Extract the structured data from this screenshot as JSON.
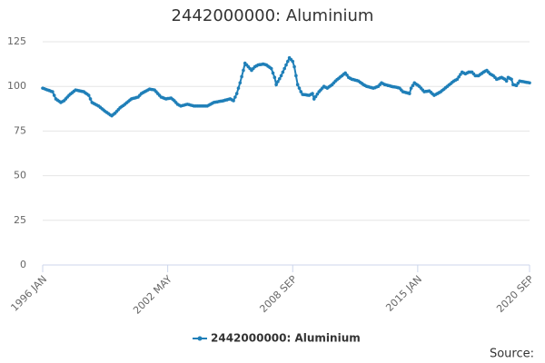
{
  "chart_data": {
    "type": "line",
    "title": "2442000000: Aluminium",
    "source": "Source:",
    "categories": [
      "1996 JAN",
      null,
      null,
      null,
      null,
      null,
      null,
      null,
      null,
      null,
      null,
      null,
      null,
      null,
      null,
      null,
      null,
      null,
      null,
      null,
      null,
      null,
      null,
      null,
      null,
      null,
      null,
      null,
      null,
      null,
      null,
      null,
      null,
      null,
      null,
      null,
      null,
      null,
      null,
      null,
      null,
      null,
      null,
      null,
      null,
      null,
      null,
      null,
      null,
      null,
      null,
      null,
      null,
      null,
      null,
      null,
      null,
      null,
      null,
      null,
      null,
      null,
      null,
      null,
      null,
      null,
      null,
      null,
      null,
      null,
      null,
      null,
      null,
      null,
      null,
      null,
      "2002 MAY",
      null,
      null,
      null,
      null,
      null,
      null,
      null,
      null,
      null,
      null,
      null,
      null,
      null,
      null,
      null,
      null,
      null,
      null,
      null,
      null,
      null,
      null,
      null,
      null,
      null,
      null,
      null,
      null,
      null,
      null,
      null,
      null,
      null,
      null,
      null,
      null,
      null,
      null,
      null,
      null,
      null,
      null,
      null,
      null,
      null,
      null,
      null,
      null,
      null,
      null,
      null,
      null,
      null,
      null,
      null,
      null,
      null,
      null,
      null,
      null,
      null,
      null,
      null,
      null,
      null,
      null,
      null,
      null,
      null,
      null,
      null,
      null,
      null,
      null,
      null,
      "2008 SEP",
      null,
      null,
      null,
      null,
      null,
      null,
      null,
      null,
      null,
      null,
      null,
      null,
      null,
      null,
      null,
      null,
      null,
      null,
      null,
      null,
      null,
      null,
      null,
      null,
      null,
      null,
      null,
      null,
      null,
      null,
      null,
      null,
      null,
      null,
      null,
      null,
      null,
      null,
      null,
      null,
      null,
      null,
      null,
      null,
      null,
      null,
      null,
      null,
      null,
      null,
      null,
      null,
      null,
      null,
      null,
      null,
      null,
      null,
      null,
      null,
      null,
      null,
      null,
      null,
      null,
      null,
      null,
      null,
      null,
      null,
      null,
      null,
      null,
      null,
      null,
      "2015 JAN",
      null,
      null,
      null,
      null,
      null,
      null,
      null,
      null,
      null,
      null,
      null,
      null,
      null,
      null,
      null,
      null,
      null,
      null,
      null,
      null,
      null,
      null,
      null,
      null,
      null,
      null,
      null,
      null,
      null,
      null,
      null,
      null,
      null,
      null,
      null,
      null,
      null,
      null,
      null,
      null,
      null,
      null,
      null,
      null,
      null,
      null,
      null,
      null,
      null,
      null,
      null,
      null,
      null,
      null,
      null,
      null,
      null,
      null,
      null,
      null,
      null,
      null,
      null,
      null,
      null,
      null,
      null,
      "2020 SEP"
    ],
    "series": [
      {
        "name": "2442000000: Aluminium",
        "color": "#1f7fb8",
        "values": [
          99,
          98.7,
          98.3,
          98,
          97.7,
          97.3,
          97,
          95,
          93,
          92.3,
          91.7,
          91,
          91.5,
          92,
          93,
          94,
          95,
          95.8,
          96.5,
          97.3,
          98,
          97.8,
          97.6,
          97.4,
          97.2,
          97,
          96.3,
          95.7,
          95,
          93,
          91,
          90.5,
          90,
          89.5,
          89,
          88.3,
          87.5,
          86.8,
          86,
          85.4,
          84.8,
          84.1,
          83.5,
          84.3,
          85,
          86,
          87,
          88,
          88.7,
          89.3,
          90,
          90.8,
          91.5,
          92.3,
          93,
          93.3,
          93.5,
          93.8,
          94,
          95,
          96,
          96.5,
          97,
          97.5,
          98,
          98.5,
          98.3,
          98.2,
          98,
          97,
          96,
          95,
          94,
          93.7,
          93.3,
          93,
          93.2,
          93.3,
          93.5,
          92.8,
          92,
          91,
          90,
          89.5,
          89,
          89.3,
          89.5,
          89.8,
          90,
          89.8,
          89.5,
          89.3,
          89,
          89,
          89,
          89,
          89,
          89,
          89,
          89,
          89,
          89.5,
          90,
          90.5,
          91,
          91.2,
          91.3,
          91.5,
          91.7,
          91.8,
          92,
          92.3,
          92.5,
          92.8,
          93,
          92.5,
          92,
          94,
          96,
          99,
          102,
          105.5,
          109,
          113,
          112,
          111,
          110,
          109,
          110,
          111,
          111.5,
          112,
          112.2,
          112.3,
          112.5,
          112.3,
          112,
          111.3,
          110.7,
          110,
          107.5,
          105,
          101,
          102.7,
          104.3,
          106,
          108,
          110,
          112,
          114,
          116,
          115,
          114,
          111,
          106,
          101,
          99,
          97,
          95.5,
          95.4,
          95.3,
          95.1,
          95,
          95.5,
          96,
          93,
          94.3,
          95.7,
          97,
          98,
          99,
          100,
          99.5,
          99,
          99.7,
          100.3,
          101,
          102,
          103,
          103.8,
          104.5,
          105.3,
          106,
          106.8,
          107.5,
          106.3,
          105,
          104.5,
          104,
          103.8,
          103.5,
          103.3,
          103,
          102.3,
          101.7,
          101,
          100.5,
          100,
          99.8,
          99.5,
          99.3,
          99,
          99.3,
          99.7,
          100,
          101,
          102,
          101.5,
          101,
          100.8,
          100.5,
          100.3,
          100,
          99.8,
          99.7,
          99.5,
          99.3,
          99,
          98,
          97,
          96.8,
          96.5,
          96.3,
          96,
          99,
          100.5,
          102,
          101.3,
          100.7,
          100,
          99,
          98,
          97,
          97.2,
          97.3,
          97.5,
          96.7,
          95.8,
          95,
          95.5,
          96,
          96.5,
          97,
          97.8,
          98.5,
          99.3,
          100,
          100.8,
          101.5,
          102.3,
          103,
          103.5,
          104,
          105.3,
          106.7,
          108,
          107.5,
          107,
          107.5,
          108,
          108,
          108,
          107,
          106,
          106,
          106,
          106.7,
          107.3,
          108,
          108.5,
          109,
          108,
          107,
          106.5,
          106,
          105,
          104,
          104.3,
          104.7,
          105,
          104.5,
          104,
          103,
          105,
          104.5,
          104,
          101,
          100.8,
          100.5,
          101.8,
          103,
          102.8,
          102.7,
          102.5,
          102.3,
          102.2,
          102
        ]
      }
    ],
    "ylim": [
      0,
      125
    ],
    "yticks": [
      0,
      25,
      50,
      75,
      100,
      125
    ],
    "grid": true
  }
}
